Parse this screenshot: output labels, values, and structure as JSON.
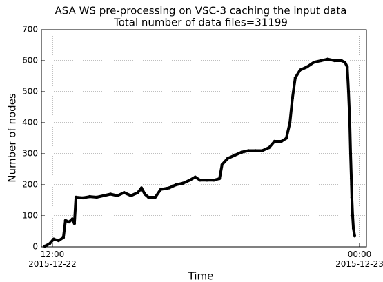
{
  "chart_data": {
    "type": "line",
    "title": "ASA WS  pre-processing on VSC-3 caching the input data",
    "subtitle": "Total number of data files=31199",
    "xlabel": "Time",
    "ylabel": "Number of nodes",
    "x": [
      11.7,
      11.89,
      12.05,
      12.24,
      12.43,
      12.51,
      12.65,
      12.78,
      12.86,
      12.92,
      13.19,
      13.46,
      13.73,
      14.0,
      14.27,
      14.54,
      14.8,
      15.07,
      15.34,
      15.48,
      15.61,
      15.75,
      16.02,
      16.23,
      16.56,
      16.83,
      17.1,
      17.37,
      17.58,
      17.77,
      18.04,
      18.31,
      18.53,
      18.63,
      18.85,
      19.12,
      19.39,
      19.66,
      19.93,
      20.2,
      20.47,
      20.68,
      20.95,
      21.14,
      21.28,
      21.38,
      21.49,
      21.68,
      21.95,
      22.22,
      22.49,
      22.76,
      23.03,
      23.3,
      23.43,
      23.52,
      23.57,
      23.62,
      23.65,
      23.68,
      23.7,
      23.73,
      23.76,
      23.81
    ],
    "series": [
      {
        "name": "nodes",
        "color": "#000000",
        "values": [
          2,
          10,
          25,
          20,
          30,
          85,
          80,
          90,
          75,
          160,
          158,
          162,
          160,
          165,
          170,
          165,
          175,
          165,
          175,
          190,
          170,
          160,
          160,
          185,
          190,
          200,
          205,
          215,
          225,
          215,
          215,
          215,
          220,
          265,
          285,
          295,
          305,
          310,
          310,
          310,
          320,
          340,
          340,
          350,
          400,
          480,
          545,
          570,
          580,
          595,
          600,
          605,
          600,
          600,
          595,
          580,
          500,
          400,
          300,
          220,
          160,
          100,
          60,
          35
        ]
      }
    ],
    "xlim": [
      11.57,
      24.27
    ],
    "xticks": [
      {
        "value": 12,
        "label": "12:00\n2015-12-22"
      },
      {
        "value": 24,
        "label": "00:00\n2015-12-23"
      }
    ],
    "ylim": [
      0,
      700
    ],
    "yticks": [
      0,
      100,
      200,
      300,
      400,
      500,
      600,
      700
    ],
    "grid": true
  }
}
